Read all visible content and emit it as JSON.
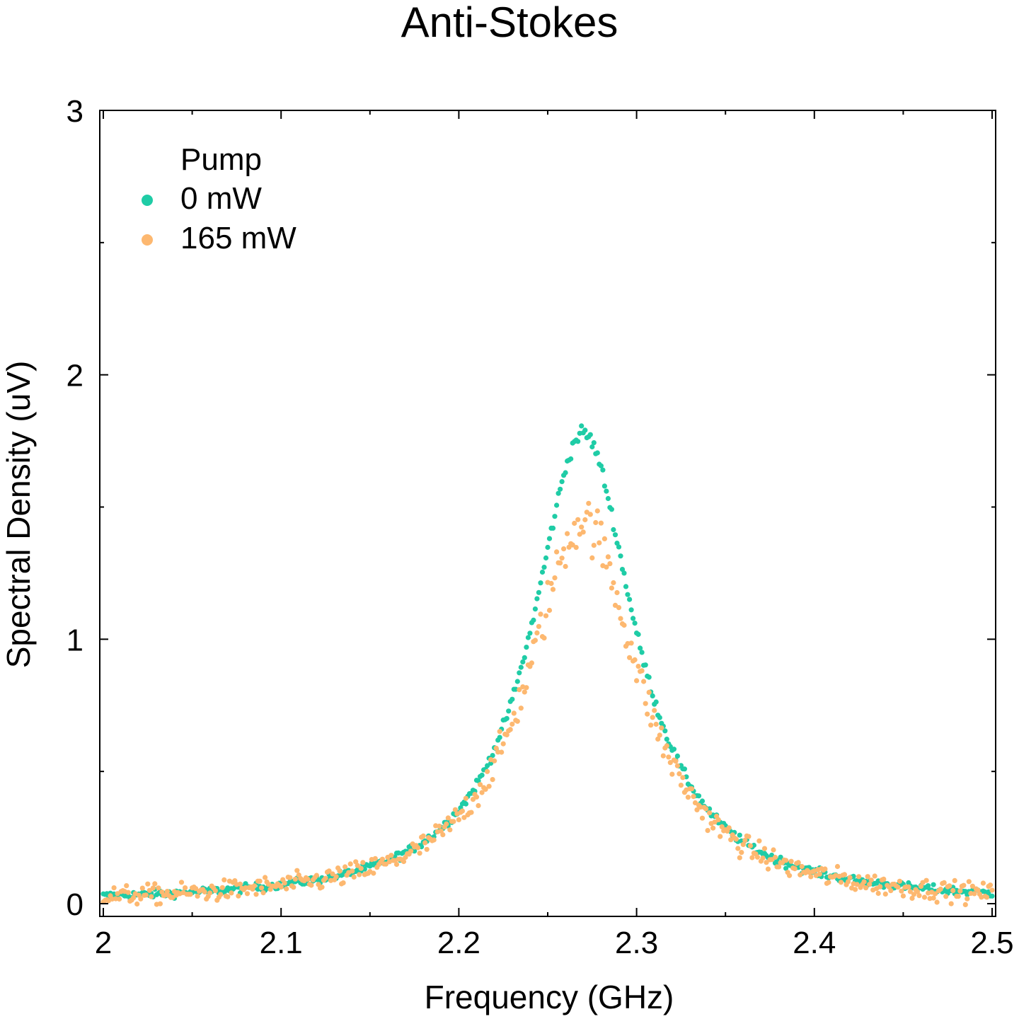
{
  "chart_data": {
    "type": "scatter",
    "title": "Anti-Stokes",
    "xlabel": "Frequency (GHz)",
    "ylabel": "Spectral Density (uV)",
    "xlim": [
      2.0,
      2.5
    ],
    "ylim": [
      -0.05,
      3.0
    ],
    "xticks": [
      2,
      2.1,
      2.2,
      2.3,
      2.4,
      2.5
    ],
    "xtick_labels": [
      "2",
      "2.1",
      "2.2",
      "2.3",
      "2.4",
      "2.5"
    ],
    "yticks": [
      0,
      1,
      2,
      3
    ],
    "ytick_labels": [
      "0",
      "1",
      "2",
      "3"
    ],
    "grid": false,
    "legend": {
      "title": "Pump",
      "placement": "top-left"
    },
    "series": [
      {
        "name": "0 mW",
        "color": "#1fcca6",
        "peak_center": 2.27,
        "peak_amplitude": 1.78,
        "half_width": 0.035,
        "scatter": 0.012
      },
      {
        "name": "165 mW",
        "color": "#fdb870",
        "peak_center": 2.27,
        "peak_amplitude": 1.45,
        "half_width": 0.038,
        "scatter": 0.07
      }
    ]
  }
}
